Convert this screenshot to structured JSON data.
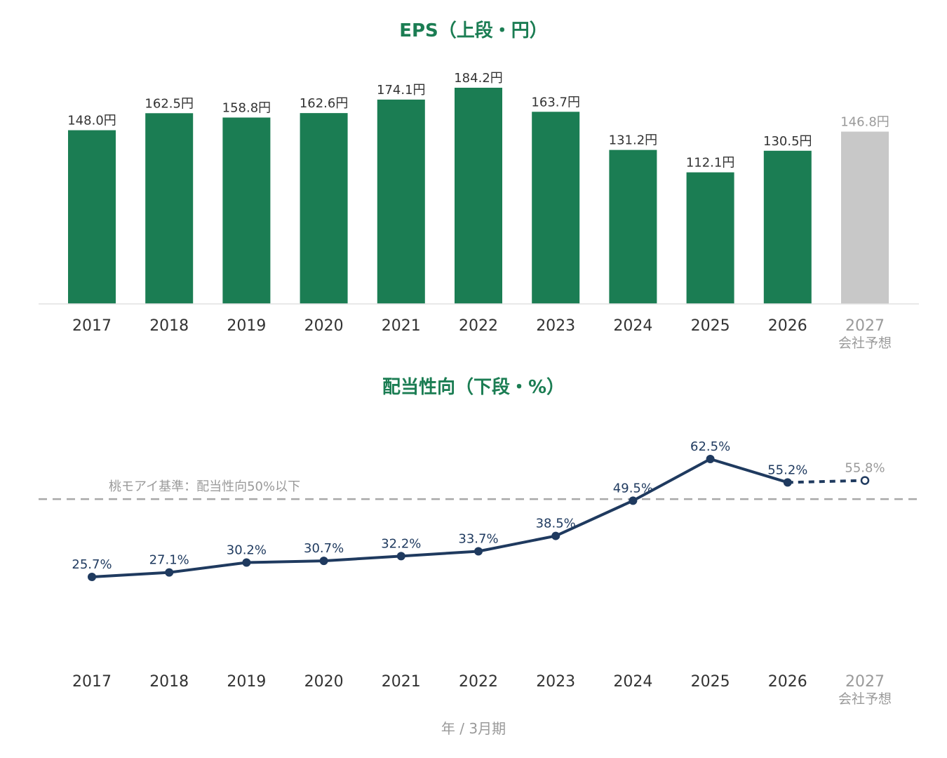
{
  "colors": {
    "actual_bar": "#1b7d53",
    "forecast_bar": "#c8c8c8",
    "line": "#1f3a5f",
    "title": "#1b7d53",
    "label": "#333333",
    "forecast_text": "#9a9a9a",
    "reference_line": "#a8a8a8",
    "axis_line": "#e2e2e2"
  },
  "xlabel": "年 / 3月期",
  "chart_data": [
    {
      "type": "bar",
      "title": "EPS（上段・円）",
      "categories": [
        "2017",
        "2018",
        "2019",
        "2020",
        "2021",
        "2022",
        "2023",
        "2024",
        "2025",
        "2026",
        "2027"
      ],
      "forecast_sublabel": "会社予想",
      "forecast_index": 10,
      "values": [
        148.0,
        162.5,
        158.8,
        162.6,
        174.1,
        184.2,
        163.7,
        131.2,
        112.1,
        130.5,
        146.8
      ],
      "labels": [
        "148.0円",
        "162.5円",
        "158.8円",
        "162.6円",
        "174.1円",
        "184.2円",
        "163.7円",
        "131.2円",
        "112.1円",
        "130.5円",
        "146.8円"
      ],
      "ylim": [
        0,
        184.2
      ]
    },
    {
      "type": "line",
      "title": "配当性向（下段・%）",
      "categories": [
        "2017",
        "2018",
        "2019",
        "2020",
        "2021",
        "2022",
        "2023",
        "2024",
        "2025",
        "2026",
        "2027"
      ],
      "forecast_sublabel": "会社予想",
      "forecast_index": 10,
      "values": [
        25.7,
        27.1,
        30.2,
        30.7,
        32.2,
        33.7,
        38.5,
        49.5,
        62.5,
        55.2,
        55.8
      ],
      "labels": [
        "25.7%",
        "27.1%",
        "30.2%",
        "30.7%",
        "32.2%",
        "33.7%",
        "38.5%",
        "49.5%",
        "62.5%",
        "55.2%",
        "55.8%"
      ],
      "reference_line": {
        "value": 50,
        "label": "桃モアイ基準：配当性向50%以下"
      },
      "ylim": [
        25.7,
        62.5
      ]
    }
  ]
}
